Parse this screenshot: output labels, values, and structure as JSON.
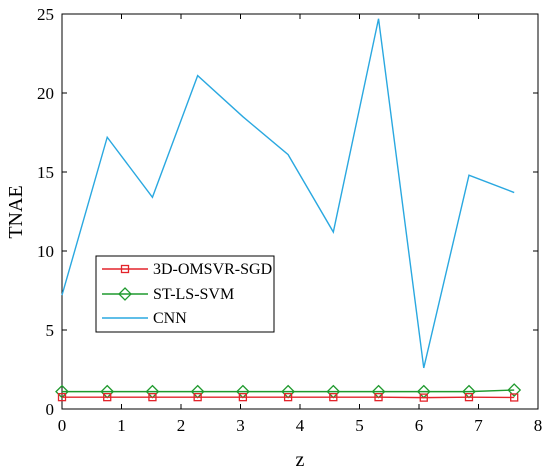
{
  "chart_data": {
    "type": "line",
    "xlabel": "z",
    "ylabel": "TNAE",
    "xlim": [
      0,
      8
    ],
    "ylim": [
      0,
      25
    ],
    "xticks": [
      "0",
      "1",
      "2",
      "3",
      "4",
      "5",
      "6",
      "7",
      "8"
    ],
    "yticks": [
      "0",
      "5",
      "10",
      "15",
      "20",
      "25"
    ],
    "grid": false,
    "legend_position": "center-left",
    "x": [
      0,
      0.76,
      1.52,
      2.28,
      3.04,
      3.8,
      4.56,
      5.32,
      6.08,
      6.84,
      7.6
    ],
    "series": [
      {
        "name": "3D-OMSVR-SGD",
        "color": "#e3242b",
        "marker": "square",
        "values": [
          0.75,
          0.75,
          0.75,
          0.75,
          0.75,
          0.75,
          0.75,
          0.75,
          0.72,
          0.75,
          0.73
        ]
      },
      {
        "name": "ST-LS-SVM",
        "color": "#1f9a2e",
        "marker": "diamond",
        "values": [
          1.1,
          1.1,
          1.1,
          1.1,
          1.1,
          1.1,
          1.1,
          1.1,
          1.1,
          1.1,
          1.2
        ]
      },
      {
        "name": "CNN",
        "color": "#2aa8e0",
        "marker": "none",
        "values": [
          7.2,
          17.2,
          13.4,
          21.1,
          18.5,
          16.1,
          11.2,
          24.7,
          2.6,
          14.8,
          13.7
        ]
      }
    ]
  }
}
